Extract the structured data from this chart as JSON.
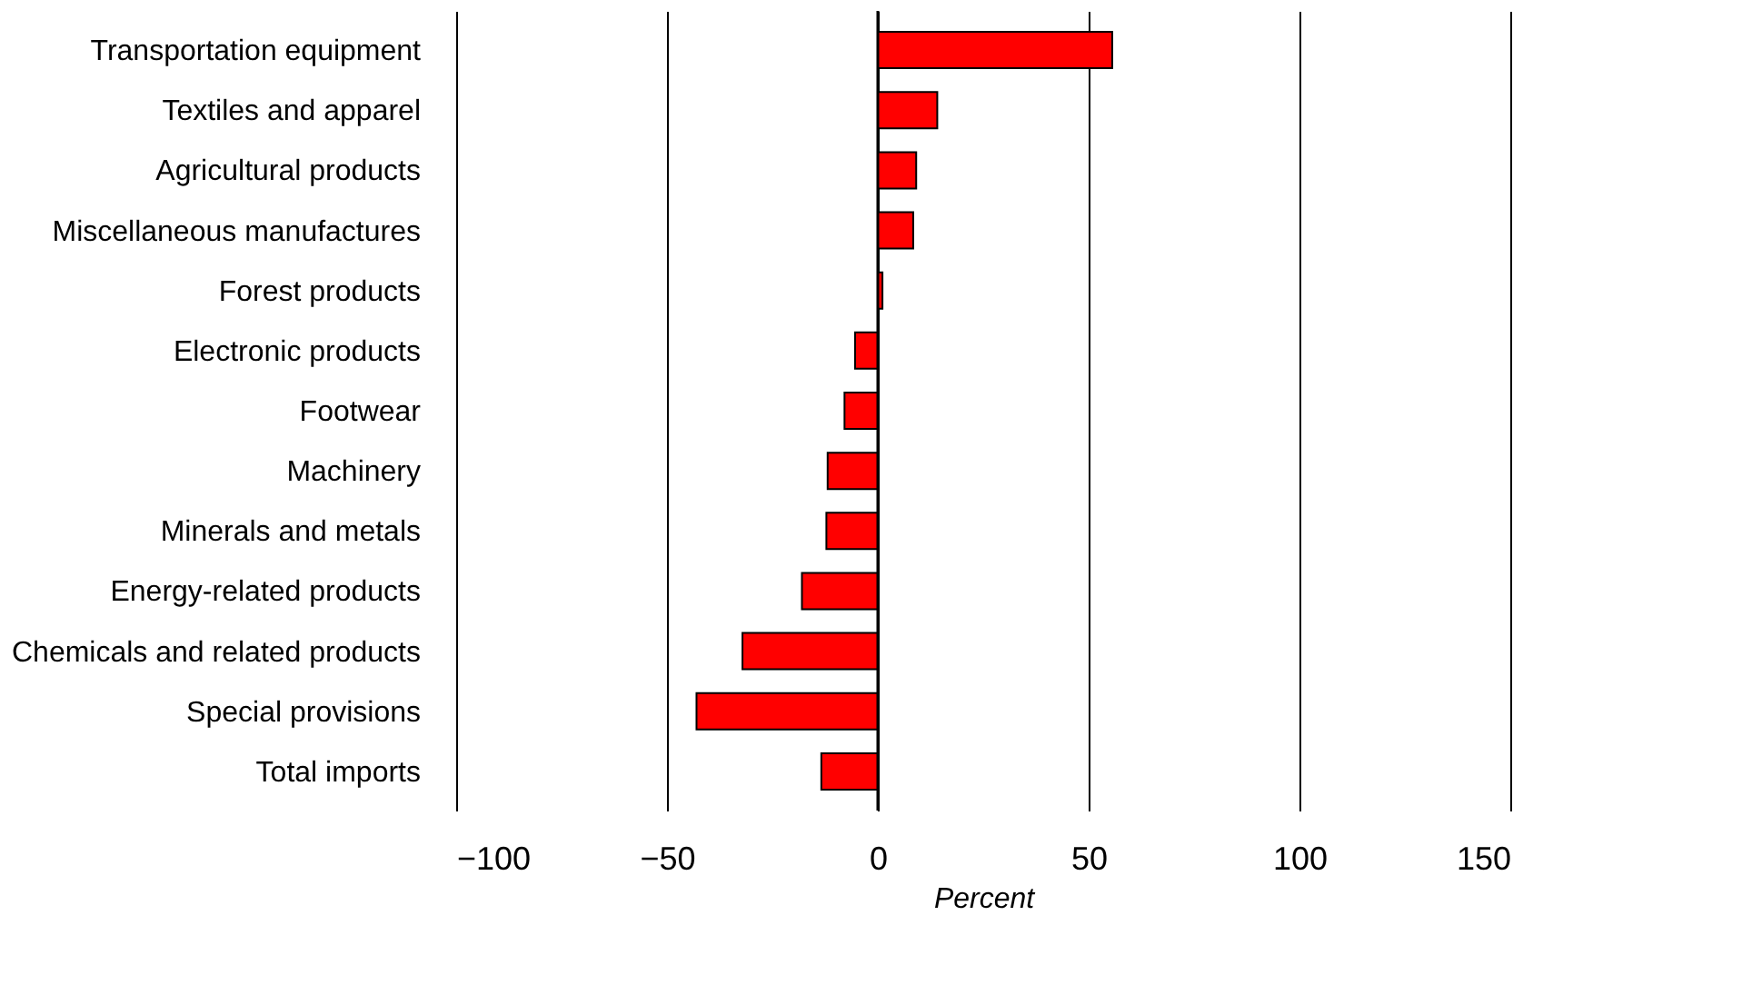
{
  "chart_data": {
    "type": "bar",
    "orientation": "horizontal",
    "xlabel": "Percent",
    "categories": [
      "Transportation equipment",
      "Textiles and apparel",
      "Agricultural products",
      "Miscellaneous manufactures",
      "Forest products",
      "Electronic products",
      "Footwear",
      "Machinery",
      "Minerals and metals",
      "Energy-related products",
      "Chemicals and related products",
      "Special provisions",
      "Total imports"
    ],
    "values": [
      55.6,
      14.1,
      9.1,
      8.4,
      1.1,
      -5.4,
      -7.9,
      -11.9,
      -12.2,
      -18.0,
      -32.1,
      -43.0,
      -13.4
    ],
    "color": "#ff0000",
    "xlim": [
      -100,
      150
    ],
    "xticks": [
      -100,
      -50,
      0,
      50,
      100,
      150
    ],
    "grid": "x"
  }
}
